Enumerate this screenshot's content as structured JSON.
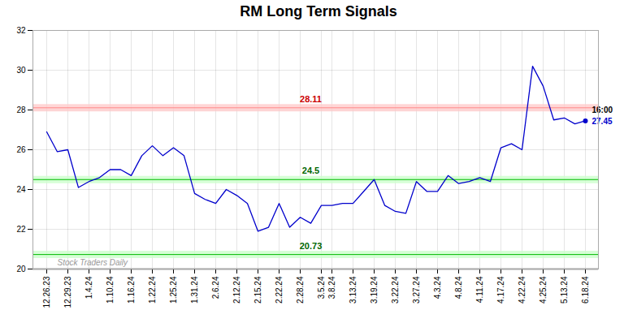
{
  "chart_data": {
    "type": "line",
    "title": "RM Long Term Signals",
    "categories": [
      "12.26.23",
      null,
      "12.29.23",
      null,
      "1.4.24",
      null,
      "1.10.24",
      null,
      "1.16.24",
      null,
      "1.22.24",
      null,
      "1.25.24",
      null,
      "1.31.24",
      null,
      "2.6.24",
      null,
      "2.12.24",
      null,
      "2.15.24",
      null,
      "2.22.24",
      null,
      "2.28.24",
      null,
      "3.5.24",
      "3.8.24",
      null,
      "3.13.24",
      null,
      "3.19.24",
      null,
      "3.22.24",
      null,
      "3.27.24",
      null,
      "4.3.24",
      null,
      "4.8.24",
      null,
      "4.11.24",
      null,
      "4.17.24",
      null,
      "4.22.24",
      null,
      "4.25.24",
      null,
      "5.13.24",
      null,
      "6.18.24"
    ],
    "values": [
      26.9,
      25.9,
      26.0,
      24.1,
      24.4,
      24.6,
      25.0,
      25.0,
      24.7,
      25.7,
      26.2,
      25.7,
      26.1,
      25.7,
      23.8,
      23.5,
      23.3,
      24.0,
      23.7,
      23.3,
      21.9,
      22.1,
      23.3,
      22.1,
      22.6,
      22.3,
      23.2,
      23.2,
      23.3,
      23.3,
      23.9,
      24.5,
      23.2,
      22.9,
      22.8,
      24.4,
      23.9,
      23.9,
      24.7,
      24.3,
      24.4,
      24.6,
      24.4,
      26.1,
      26.3,
      26.0,
      30.2,
      29.2,
      27.5,
      27.6,
      27.3,
      27.45
    ],
    "color": "#0000cc",
    "ylim": [
      20,
      32
    ],
    "yticks": [
      20,
      22,
      24,
      26,
      28,
      30,
      32
    ],
    "grid": true,
    "reference_lines": [
      {
        "value": 28.11,
        "label": "28.11",
        "color": "#ff8888",
        "band_color": "#ffcccc",
        "label_color": "#cc0000"
      },
      {
        "value": 24.5,
        "label": "24.5",
        "color": "#00bb00",
        "band_color": "#ccffcc",
        "label_color": "#006600"
      },
      {
        "value": 20.73,
        "label": "20.73",
        "color": "#00bb00",
        "band_color": "#ccffcc",
        "label_color": "#006600"
      },
      {
        "value": 20.0,
        "color": "#444444"
      }
    ],
    "last_point": {
      "value": 27.45,
      "time_label": "16:00",
      "value_label": "27.45"
    },
    "watermark": "Stock Traders Daily"
  }
}
